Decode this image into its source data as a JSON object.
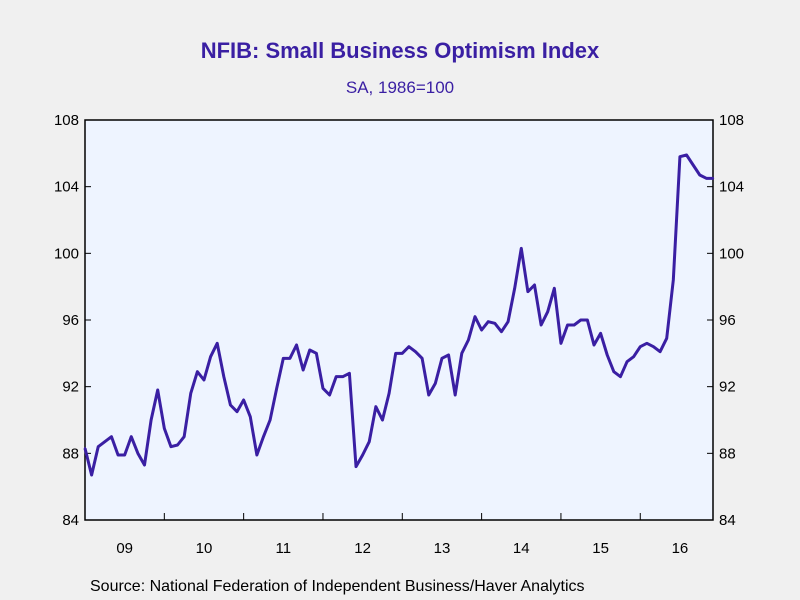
{
  "chart_data": {
    "type": "line",
    "title": "NFIB: Small Business Optimism Index",
    "subtitle": "SA, 1986=100",
    "source": "Source:  National Federation of Independent Business/Haver Analytics",
    "ylim": [
      84,
      108
    ],
    "yticks": [
      84,
      88,
      92,
      96,
      100,
      104,
      108
    ],
    "xlim": [
      2009.0,
      2016.917
    ],
    "xtick_labels": [
      {
        "label": "09",
        "x": 2009.0
      },
      {
        "label": "10",
        "x": 2010.0
      },
      {
        "label": "11",
        "x": 2011.0
      },
      {
        "label": "12",
        "x": 2012.0
      },
      {
        "label": "13",
        "x": 2013.0
      },
      {
        "label": "14",
        "x": 2014.0
      },
      {
        "label": "15",
        "x": 2015.0
      },
      {
        "label": "16",
        "x": 2016.0
      }
    ],
    "series": [
      {
        "color": "#3a1fa3",
        "start": "2009-01",
        "frequency": "monthly",
        "values": [
          88.3,
          86.7,
          88.4,
          88.7,
          89.0,
          87.9,
          87.9,
          89.0,
          88.0,
          87.3,
          90.0,
          91.8,
          89.5,
          88.4,
          88.5,
          89.0,
          91.6,
          92.9,
          92.4,
          93.8,
          94.6,
          92.6,
          90.9,
          90.5,
          91.2,
          90.2,
          87.9,
          89.0,
          90.0,
          91.9,
          93.7,
          93.7,
          94.5,
          93.0,
          94.2,
          94.0,
          91.9,
          91.5,
          92.6,
          92.6,
          92.8,
          87.2,
          87.9,
          88.7,
          90.8,
          90.0,
          91.6,
          94.0,
          94.0,
          94.4,
          94.1,
          93.7,
          91.5,
          92.2,
          93.7,
          93.9,
          91.5,
          94.0,
          94.8,
          96.2,
          95.4,
          95.9,
          95.8,
          95.3,
          95.9,
          97.9,
          100.3,
          97.7,
          98.1,
          95.7,
          96.5,
          97.9,
          94.6,
          95.7,
          95.7,
          96.0,
          96.0,
          94.5,
          95.2,
          93.9,
          92.9,
          92.6,
          93.5,
          93.8,
          94.4,
          94.6,
          94.4,
          94.1,
          94.9,
          98.4,
          105.8,
          105.9,
          105.3,
          104.7,
          104.5,
          104.5
        ]
      }
    ]
  }
}
